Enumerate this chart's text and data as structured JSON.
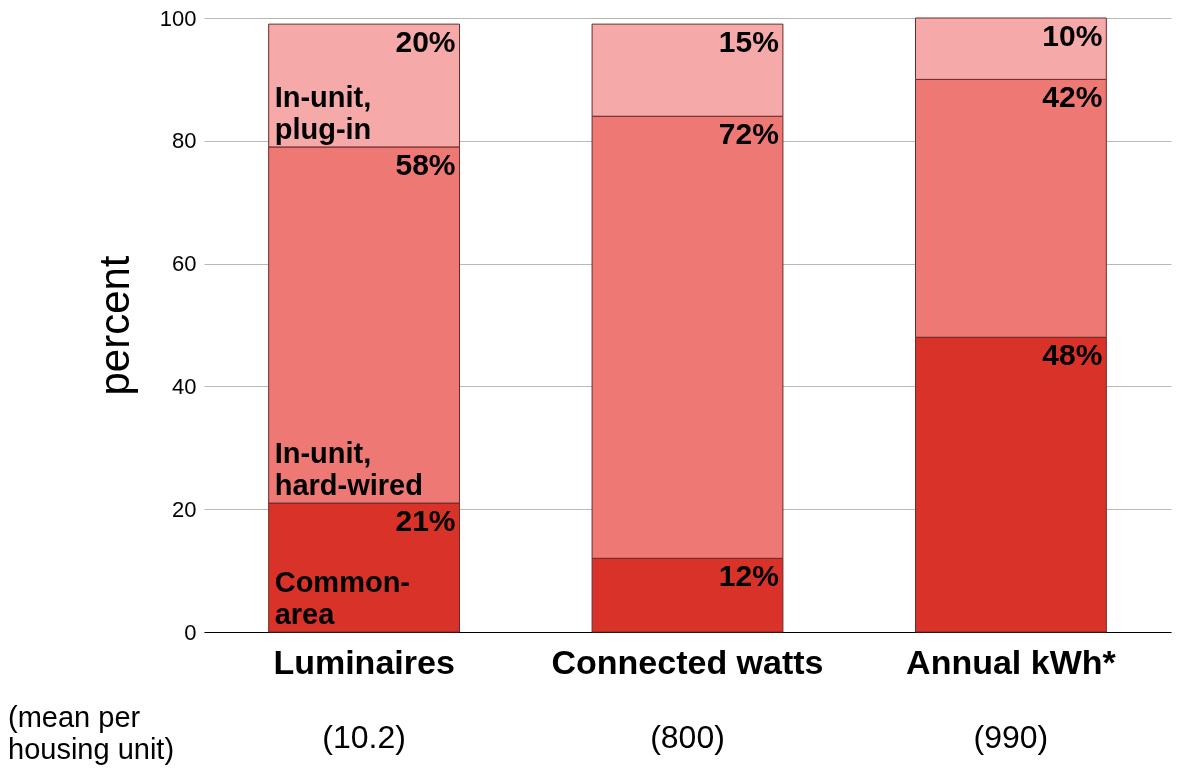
{
  "chart_data": {
    "type": "bar",
    "stacked": true,
    "ylabel": "percent",
    "categories": [
      "Luminaires",
      "Connected watts",
      "Annual kWh*"
    ],
    "series": [
      {
        "name": "Common-area",
        "color": "#d93229",
        "values": [
          21,
          12,
          48
        ],
        "value_labels": [
          "21%",
          "12%",
          "48%"
        ]
      },
      {
        "name": "In-unit, hard-wired",
        "color": "#ee7874",
        "values": [
          58,
          72,
          42
        ],
        "value_labels": [
          "58%",
          "72%",
          "42%"
        ]
      },
      {
        "name": "In-unit, plug-in",
        "color": "#f5aaa9",
        "values": [
          20,
          15,
          10
        ],
        "value_labels": [
          "20%",
          "15%",
          "10%"
        ]
      }
    ],
    "ylim": [
      0,
      100
    ],
    "yticks": [
      0,
      20,
      40,
      60,
      80,
      100
    ],
    "grid": "y",
    "annotations": [
      "(mean per housing unit)",
      "(10.2)",
      "(800)",
      "(990)"
    ]
  }
}
